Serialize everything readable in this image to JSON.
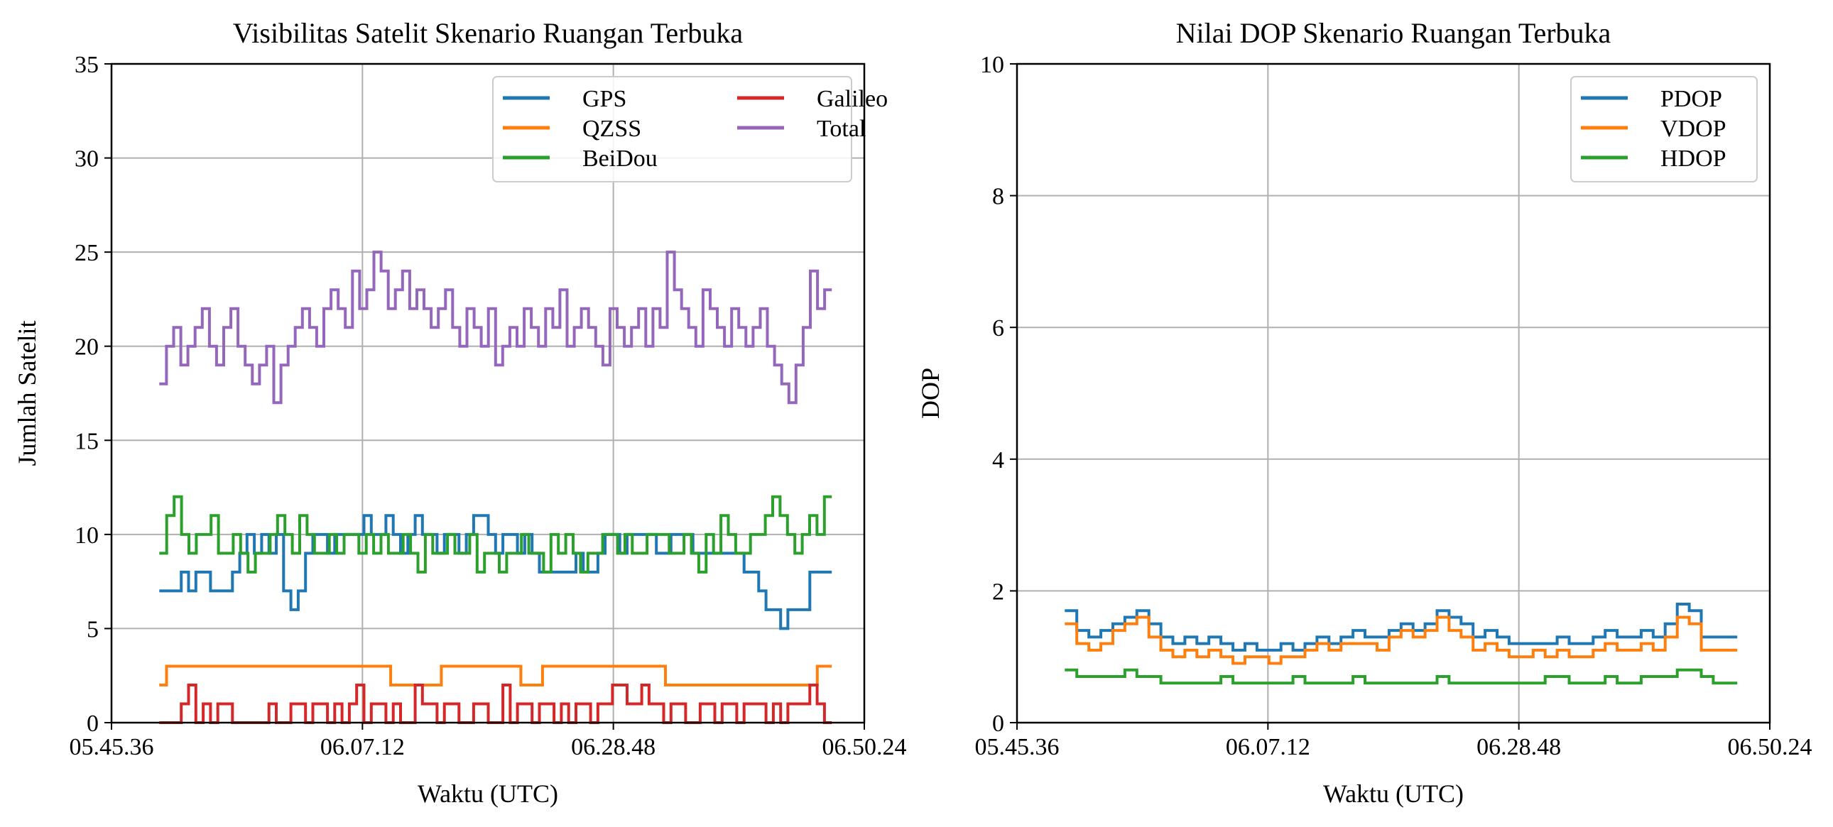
{
  "charts": [
    {
      "type": "line",
      "title": "Visibilitas Satelit Skenario Ruangan Terbuka",
      "xlabel": "Waktu (UTC)",
      "ylabel": "Jumlah Satelit",
      "x_ticks": [
        "05.45.36",
        "06.07.12",
        "06.28.48",
        "06.50.24"
      ],
      "y_ticks": [
        "0",
        "5",
        "10",
        "15",
        "20",
        "25",
        "30",
        "35"
      ],
      "xlim": [
        "05.45.36",
        "06.50.24"
      ],
      "ylim": [
        0,
        35
      ],
      "grid": true,
      "legend_position": "top-right",
      "legend_columns": 2,
      "series": [
        {
          "name": "GPS",
          "color": "#1f77b4",
          "values": [
            7,
            7,
            7,
            8,
            7,
            8,
            8,
            7,
            7,
            7,
            8,
            9,
            10,
            9,
            10,
            9,
            10,
            7,
            6,
            7,
            9,
            10,
            10,
            9,
            10,
            10,
            10,
            10,
            11,
            10,
            10,
            11,
            10,
            9,
            10,
            11,
            10,
            10,
            9,
            10,
            10,
            9,
            10,
            11,
            11,
            10,
            9,
            10,
            10,
            9,
            10,
            9,
            8,
            8,
            8,
            8,
            8,
            9,
            8,
            8,
            9,
            10,
            10,
            9,
            10,
            10,
            10,
            10,
            9,
            9,
            10,
            10,
            10,
            9,
            9,
            9,
            9,
            9,
            9,
            9,
            8,
            8,
            7,
            6,
            6,
            5,
            6,
            6,
            6,
            8,
            8,
            8
          ]
        },
        {
          "name": "QZSS",
          "color": "#ff7f0e",
          "values": [
            2,
            3,
            3,
            3,
            3,
            3,
            3,
            3,
            3,
            3,
            3,
            3,
            3,
            3,
            3,
            3,
            3,
            3,
            3,
            3,
            3,
            3,
            3,
            3,
            3,
            3,
            3,
            3,
            3,
            3,
            3,
            3,
            2,
            2,
            2,
            2,
            2,
            2,
            2,
            3,
            3,
            3,
            3,
            3,
            3,
            3,
            3,
            3,
            3,
            3,
            2,
            2,
            2,
            3,
            3,
            3,
            3,
            3,
            3,
            3,
            3,
            3,
            3,
            3,
            3,
            3,
            3,
            3,
            3,
            3,
            2,
            2,
            2,
            2,
            2,
            2,
            2,
            2,
            2,
            2,
            2,
            2,
            2,
            2,
            2,
            2,
            2,
            2,
            2,
            2,
            2,
            3,
            3
          ]
        },
        {
          "name": "BeiDou",
          "color": "#2ca02c",
          "values": [
            9,
            11,
            12,
            10,
            9,
            10,
            10,
            11,
            9,
            9,
            10,
            9,
            8,
            9,
            9,
            10,
            11,
            10,
            9,
            11,
            10,
            9,
            9,
            10,
            9,
            10,
            10,
            9,
            10,
            9,
            10,
            9,
            9,
            10,
            9,
            8,
            10,
            9,
            9,
            10,
            9,
            9,
            10,
            8,
            9,
            9,
            8,
            9,
            9,
            10,
            9,
            9,
            8,
            10,
            9,
            10,
            9,
            8,
            9,
            9,
            10,
            10,
            9,
            10,
            9,
            9,
            10,
            10,
            10,
            9,
            9,
            10,
            9,
            8,
            10,
            9,
            11,
            10,
            9,
            9,
            10,
            10,
            11,
            12,
            11,
            10,
            9,
            10,
            11,
            10,
            12
          ]
        },
        {
          "name": "Galileo",
          "color": "#d62728",
          "values": [
            0,
            0,
            0,
            1,
            2,
            0,
            1,
            0,
            1,
            1,
            0,
            0,
            0,
            0,
            0,
            1,
            0,
            0,
            1,
            1,
            0,
            1,
            1,
            0,
            1,
            0,
            1,
            2,
            0,
            1,
            1,
            0,
            1,
            0,
            0,
            2,
            1,
            1,
            0,
            1,
            1,
            0,
            0,
            1,
            1,
            0,
            0,
            2,
            0,
            1,
            1,
            0,
            1,
            1,
            0,
            1,
            0,
            1,
            1,
            0,
            1,
            1,
            2,
            2,
            1,
            1,
            2,
            1,
            1,
            0,
            1,
            1,
            0,
            0,
            1,
            1,
            0,
            1,
            1,
            0,
            1,
            1,
            1,
            0,
            1,
            0,
            1,
            1,
            1,
            2,
            1,
            0
          ]
        },
        {
          "name": "Total",
          "color": "#9467bd",
          "values": [
            18,
            20,
            21,
            19,
            20,
            21,
            22,
            20,
            19,
            21,
            22,
            20,
            19,
            18,
            19,
            20,
            17,
            19,
            20,
            21,
            22,
            21,
            20,
            22,
            23,
            22,
            21,
            24,
            22,
            23,
            25,
            24,
            22,
            23,
            24,
            22,
            23,
            22,
            21,
            22,
            23,
            21,
            20,
            22,
            21,
            20,
            22,
            19,
            20,
            21,
            20,
            22,
            21,
            20,
            22,
            21,
            23,
            20,
            21,
            22,
            21,
            20,
            19,
            22,
            21,
            20,
            21,
            22,
            20,
            22,
            21,
            25,
            23,
            22,
            21,
            20,
            23,
            22,
            21,
            20,
            22,
            21,
            20,
            21,
            22,
            20,
            19,
            18,
            17,
            19,
            21,
            24,
            22,
            23
          ]
        }
      ]
    },
    {
      "type": "line",
      "title": "Nilai DOP Skenario Ruangan Terbuka",
      "xlabel": "Waktu (UTC)",
      "ylabel": "DOP",
      "x_ticks": [
        "05.45.36",
        "06.07.12",
        "06.28.48",
        "06.50.24"
      ],
      "y_ticks": [
        "0",
        "2",
        "4",
        "6",
        "8",
        "10"
      ],
      "xlim": [
        "05.45.36",
        "06.50.24"
      ],
      "ylim": [
        0,
        10
      ],
      "grid": true,
      "legend_position": "top-right",
      "legend_columns": 1,
      "series": [
        {
          "name": "PDOP",
          "color": "#1f77b4",
          "values": [
            1.7,
            1.4,
            1.3,
            1.4,
            1.5,
            1.6,
            1.7,
            1.5,
            1.3,
            1.2,
            1.3,
            1.2,
            1.3,
            1.2,
            1.1,
            1.2,
            1.1,
            1.1,
            1.2,
            1.1,
            1.2,
            1.3,
            1.2,
            1.3,
            1.4,
            1.3,
            1.3,
            1.4,
            1.5,
            1.4,
            1.5,
            1.7,
            1.6,
            1.5,
            1.3,
            1.4,
            1.3,
            1.2,
            1.2,
            1.2,
            1.2,
            1.3,
            1.2,
            1.2,
            1.3,
            1.4,
            1.3,
            1.3,
            1.4,
            1.3,
            1.5,
            1.8,
            1.7,
            1.3,
            1.3,
            1.3
          ]
        },
        {
          "name": "VDOP",
          "color": "#ff7f0e",
          "values": [
            1.5,
            1.2,
            1.1,
            1.2,
            1.4,
            1.5,
            1.6,
            1.3,
            1.1,
            1.0,
            1.1,
            1.0,
            1.1,
            1.0,
            0.9,
            1.0,
            1.0,
            0.9,
            1.0,
            1.0,
            1.1,
            1.2,
            1.1,
            1.2,
            1.2,
            1.2,
            1.1,
            1.3,
            1.4,
            1.3,
            1.4,
            1.6,
            1.4,
            1.3,
            1.1,
            1.2,
            1.1,
            1.0,
            1.0,
            1.1,
            1.0,
            1.1,
            1.0,
            1.0,
            1.1,
            1.2,
            1.1,
            1.1,
            1.2,
            1.1,
            1.3,
            1.6,
            1.5,
            1.1,
            1.1,
            1.1
          ]
        },
        {
          "name": "HDOP",
          "color": "#2ca02c",
          "values": [
            0.8,
            0.7,
            0.7,
            0.7,
            0.7,
            0.8,
            0.7,
            0.7,
            0.6,
            0.6,
            0.6,
            0.6,
            0.6,
            0.7,
            0.6,
            0.6,
            0.6,
            0.6,
            0.6,
            0.7,
            0.6,
            0.6,
            0.6,
            0.6,
            0.7,
            0.6,
            0.6,
            0.6,
            0.6,
            0.6,
            0.6,
            0.7,
            0.6,
            0.6,
            0.6,
            0.6,
            0.6,
            0.6,
            0.6,
            0.6,
            0.7,
            0.7,
            0.6,
            0.6,
            0.6,
            0.7,
            0.6,
            0.6,
            0.7,
            0.7,
            0.7,
            0.8,
            0.8,
            0.7,
            0.6,
            0.6
          ]
        }
      ]
    }
  ]
}
